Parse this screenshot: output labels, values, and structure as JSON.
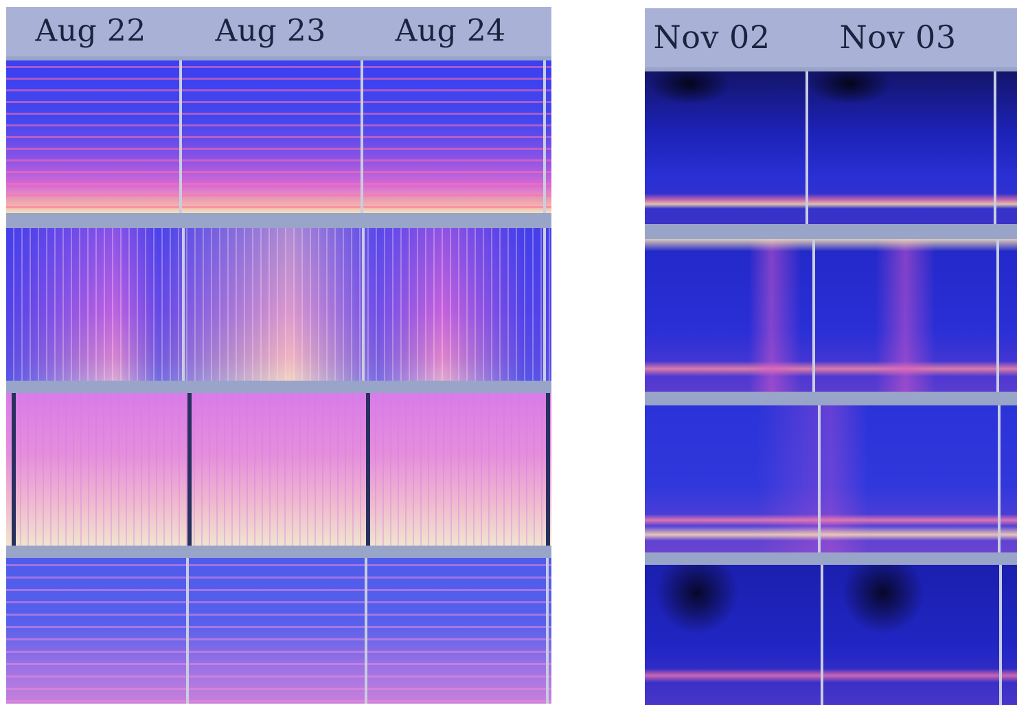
{
  "panels": [
    {
      "id": "left",
      "dates": [
        "Aug 22",
        "Aug 23",
        "Aug 24"
      ]
    },
    {
      "id": "right",
      "dates": [
        "Nov 02",
        "Nov 03"
      ]
    }
  ],
  "colors": {
    "frame": "#98a4c8",
    "header": "#a9b2d6",
    "label": "#1c2340",
    "deep_blue": "#2a2fd6",
    "magenta": "#d866e8",
    "pink": "#f07ad0",
    "cream": "#efe6d2",
    "navy": "#151a66"
  }
}
